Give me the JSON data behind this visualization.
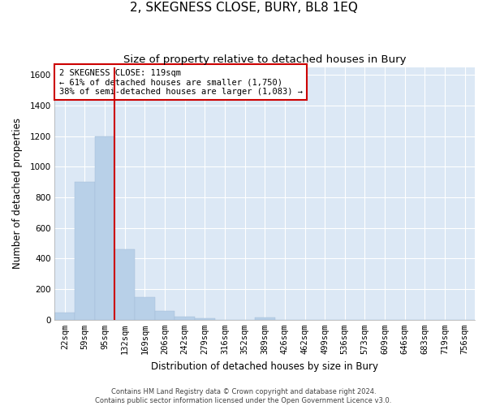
{
  "title": "2, SKEGNESS CLOSE, BURY, BL8 1EQ",
  "subtitle": "Size of property relative to detached houses in Bury",
  "xlabel": "Distribution of detached houses by size in Bury",
  "ylabel": "Number of detached properties",
  "footer_line1": "Contains HM Land Registry data © Crown copyright and database right 2024.",
  "footer_line2": "Contains public sector information licensed under the Open Government Licence v3.0.",
  "bar_labels": [
    "22sqm",
    "59sqm",
    "95sqm",
    "132sqm",
    "169sqm",
    "206sqm",
    "242sqm",
    "279sqm",
    "316sqm",
    "352sqm",
    "389sqm",
    "426sqm",
    "462sqm",
    "499sqm",
    "536sqm",
    "573sqm",
    "609sqm",
    "646sqm",
    "683sqm",
    "719sqm",
    "756sqm"
  ],
  "bar_values": [
    45,
    900,
    1200,
    460,
    150,
    55,
    22,
    10,
    0,
    0,
    14,
    0,
    0,
    0,
    0,
    0,
    0,
    0,
    0,
    0,
    0
  ],
  "bar_color": "#b8d0e8",
  "bar_edge_color": "#b8d0e8",
  "background_color": "#dce8f5",
  "grid_color": "#ffffff",
  "annotation_box_color": "#cc0000",
  "annotation_text_line1": "2 SKEGNESS CLOSE: 119sqm",
  "annotation_text_line2": "← 61% of detached houses are smaller (1,750)",
  "annotation_text_line3": "38% of semi-detached houses are larger (1,083) →",
  "property_line_x": 2.5,
  "ylim": [
    0,
    1650
  ],
  "yticks": [
    0,
    200,
    400,
    600,
    800,
    1000,
    1200,
    1400,
    1600
  ],
  "title_fontsize": 11,
  "subtitle_fontsize": 9.5,
  "axis_label_fontsize": 8.5,
  "tick_fontsize": 7.5,
  "annotation_fontsize": 7.5
}
